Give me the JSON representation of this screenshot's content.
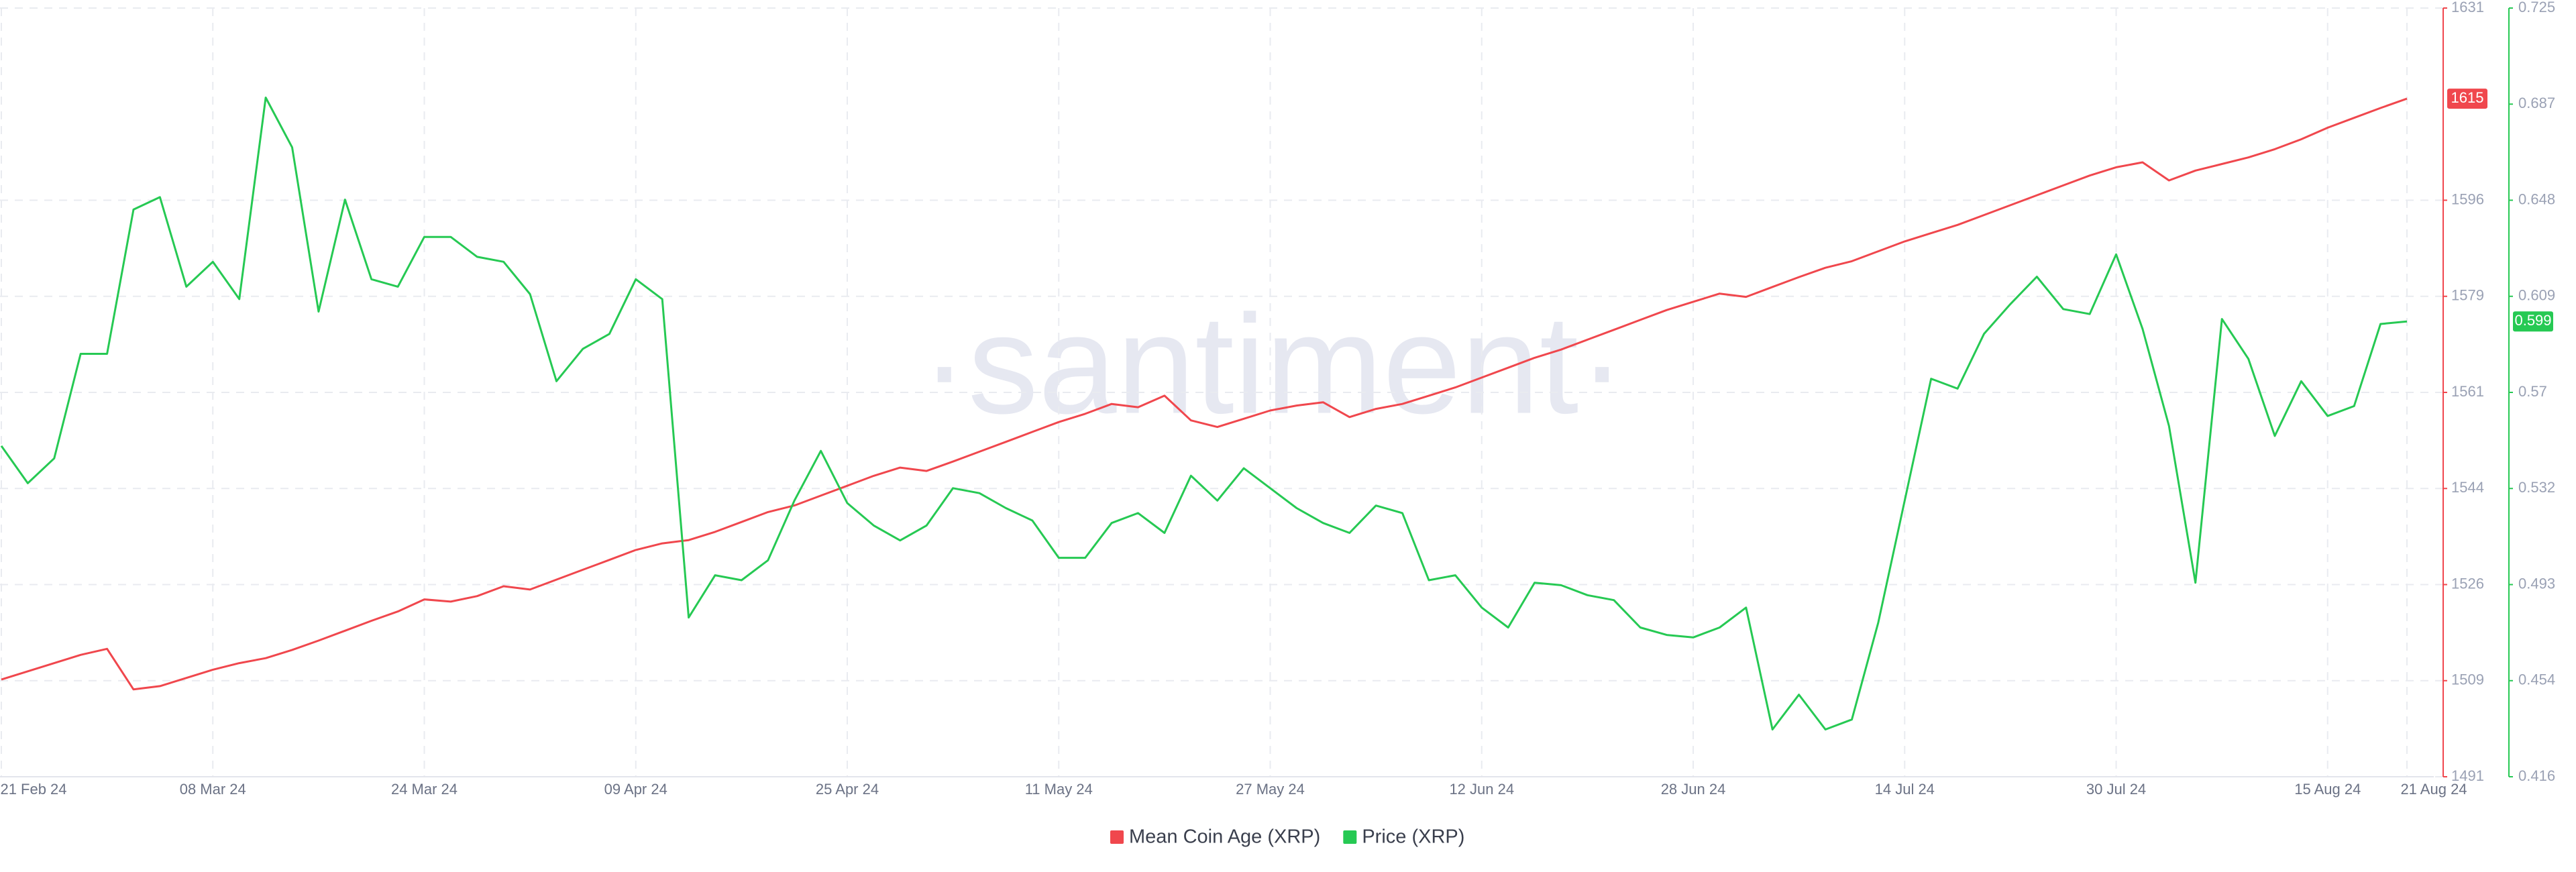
{
  "chart_data": {
    "type": "line",
    "watermark": "·santiment·",
    "x": [
      "21 Feb 24",
      "23 Feb 24",
      "25 Feb 24",
      "27 Feb 24",
      "29 Feb 24",
      "02 Mar 24",
      "04 Mar 24",
      "06 Mar 24",
      "08 Mar 24",
      "10 Mar 24",
      "12 Mar 24",
      "14 Mar 24",
      "16 Mar 24",
      "18 Mar 24",
      "20 Mar 24",
      "22 Mar 24",
      "24 Mar 24",
      "26 Mar 24",
      "28 Mar 24",
      "30 Mar 24",
      "01 Apr 24",
      "03 Apr 24",
      "05 Apr 24",
      "07 Apr 24",
      "09 Apr 24",
      "11 Apr 24",
      "13 Apr 24",
      "15 Apr 24",
      "17 Apr 24",
      "19 Apr 24",
      "21 Apr 24",
      "23 Apr 24",
      "25 Apr 24",
      "27 Apr 24",
      "29 Apr 24",
      "01 May 24",
      "03 May 24",
      "05 May 24",
      "07 May 24",
      "09 May 24",
      "11 May 24",
      "13 May 24",
      "15 May 24",
      "17 May 24",
      "19 May 24",
      "21 May 24",
      "23 May 24",
      "25 May 24",
      "27 May 24",
      "29 May 24",
      "31 May 24",
      "02 Jun 24",
      "04 Jun 24",
      "06 Jun 24",
      "08 Jun 24",
      "10 Jun 24",
      "12 Jun 24",
      "14 Jun 24",
      "16 Jun 24",
      "18 Jun 24",
      "20 Jun 24",
      "22 Jun 24",
      "24 Jun 24",
      "26 Jun 24",
      "28 Jun 24",
      "30 Jun 24",
      "02 Jul 24",
      "04 Jul 24",
      "06 Jul 24",
      "08 Jul 24",
      "10 Jul 24",
      "12 Jul 24",
      "14 Jul 24",
      "16 Jul 24",
      "18 Jul 24",
      "20 Jul 24",
      "22 Jul 24",
      "24 Jul 24",
      "26 Jul 24",
      "28 Jul 24",
      "30 Jul 24",
      "01 Aug 24",
      "03 Aug 24",
      "05 Aug 24",
      "07 Aug 24",
      "09 Aug 24",
      "11 Aug 24",
      "13 Aug 24",
      "15 Aug 24",
      "17 Aug 24",
      "19 Aug 24",
      "21 Aug 24"
    ],
    "xticks": [
      "21 Feb 24",
      "08 Mar 24",
      "24 Mar 24",
      "09 Apr 24",
      "25 Apr 24",
      "11 May 24",
      "27 May 24",
      "12 Jun 24",
      "28 Jun 24",
      "14 Jul 24",
      "30 Jul 24",
      "15 Aug 24",
      "21 Aug 24"
    ],
    "ylim": [
      1491,
      1631
    ],
    "yticks": [
      {
        "value": 1491,
        "label": "1491"
      },
      {
        "value": 1508.5,
        "label": "1509"
      },
      {
        "value": 1526,
        "label": "1526"
      },
      {
        "value": 1543.5,
        "label": "1544"
      },
      {
        "value": 1561,
        "label": "1561"
      },
      {
        "value": 1578.5,
        "label": "1579"
      },
      {
        "value": 1596,
        "label": "1596"
      },
      {
        "value": 1631,
        "label": "1631"
      }
    ],
    "y2lim": [
      0.416,
      0.725
    ],
    "y2ticks": [
      {
        "value": 0.416,
        "label": "0.416"
      },
      {
        "value": 0.454625,
        "label": "0.454"
      },
      {
        "value": 0.49325,
        "label": "0.493"
      },
      {
        "value": 0.531875,
        "label": "0.532"
      },
      {
        "value": 0.5705,
        "label": "0.57"
      },
      {
        "value": 0.609125,
        "label": "0.609"
      },
      {
        "value": 0.64775,
        "label": "0.648"
      },
      {
        "value": 0.686375,
        "label": "0.687"
      },
      {
        "value": 0.725,
        "label": "0.725"
      }
    ],
    "grid": true,
    "series": [
      {
        "name": "Mean Coin Age (XRP)",
        "color": "#f0474d",
        "axis": "y",
        "values": [
          1508.7,
          1510.2,
          1511.7,
          1513.2,
          1514.3,
          1506.9,
          1507.5,
          1509.0,
          1510.5,
          1511.7,
          1512.6,
          1514.1,
          1515.8,
          1517.6,
          1519.4,
          1521.1,
          1523.3,
          1522.9,
          1523.9,
          1525.7,
          1525.1,
          1526.9,
          1528.7,
          1530.5,
          1532.3,
          1533.5,
          1534.1,
          1535.6,
          1537.4,
          1539.2,
          1540.4,
          1542.2,
          1544.0,
          1545.8,
          1547.3,
          1546.7,
          1548.4,
          1550.2,
          1552.0,
          1553.8,
          1555.6,
          1557.1,
          1558.9,
          1558.3,
          1560.4,
          1555.9,
          1554.7,
          1556.2,
          1557.7,
          1558.6,
          1559.2,
          1556.5,
          1558.0,
          1558.9,
          1560.4,
          1561.9,
          1563.7,
          1565.5,
          1567.3,
          1568.8,
          1570.6,
          1572.4,
          1574.2,
          1576.0,
          1577.5,
          1579.0,
          1578.4,
          1580.2,
          1582.0,
          1583.7,
          1584.9,
          1586.7,
          1588.5,
          1590.0,
          1591.5,
          1593.3,
          1595.1,
          1596.9,
          1598.7,
          1600.5,
          1602.0,
          1602.9,
          1599.6,
          1601.4,
          1602.6,
          1603.8,
          1605.3,
          1607.1,
          1609.2,
          1611.0,
          1612.8,
          1614.5
        ],
        "value_labels": [
          null,
          null,
          null,
          null,
          null,
          null,
          null,
          null,
          null,
          null,
          null,
          null,
          null,
          null,
          null,
          null,
          null,
          null,
          null,
          null,
          null,
          null,
          null,
          null,
          null,
          null,
          null,
          null,
          null,
          null,
          null,
          null,
          null,
          null,
          null,
          null,
          null,
          null,
          null,
          null,
          null,
          null,
          null,
          null,
          null,
          null,
          null,
          null,
          null,
          null,
          null,
          null,
          null,
          null,
          null,
          null,
          null,
          null,
          null,
          null,
          null,
          null,
          null,
          null,
          null,
          null,
          null,
          null,
          null,
          null,
          null,
          null,
          null,
          null,
          null,
          null,
          null,
          null,
          null,
          null,
          null,
          null,
          null,
          null,
          null,
          null,
          null,
          null,
          null,
          null,
          null,
          "1615"
        ]
      },
      {
        "name": "Price (XRP)",
        "color": "#26c953",
        "axis": "y2",
        "values": [
          0.549,
          0.534,
          0.544,
          0.586,
          0.586,
          0.644,
          0.649,
          0.613,
          0.623,
          0.608,
          0.689,
          0.669,
          0.603,
          0.648,
          0.616,
          0.613,
          0.633,
          0.633,
          0.625,
          0.623,
          0.61,
          0.575,
          0.588,
          0.594,
          0.616,
          0.608,
          0.48,
          0.497,
          0.495,
          0.503,
          0.527,
          0.547,
          0.526,
          0.517,
          0.511,
          0.517,
          0.532,
          0.53,
          0.524,
          0.519,
          0.504,
          0.504,
          0.518,
          0.522,
          0.514,
          0.537,
          0.527,
          0.54,
          0.532,
          0.524,
          0.518,
          0.514,
          0.525,
          0.522,
          0.495,
          0.497,
          0.484,
          0.476,
          0.494,
          0.493,
          0.489,
          0.487,
          0.476,
          0.473,
          0.472,
          0.476,
          0.484,
          0.435,
          0.449,
          0.435,
          0.439,
          0.478,
          0.527,
          0.576,
          0.572,
          0.594,
          0.606,
          0.617,
          0.604,
          0.602,
          0.626,
          0.596,
          0.557,
          0.494,
          0.6,
          0.584,
          0.553,
          0.575,
          0.561,
          0.565,
          0.598,
          0.599
        ],
        "value_labels": [
          null,
          null,
          null,
          null,
          null,
          null,
          null,
          null,
          null,
          null,
          null,
          null,
          null,
          null,
          null,
          null,
          null,
          null,
          null,
          null,
          null,
          null,
          null,
          null,
          null,
          null,
          null,
          null,
          null,
          null,
          null,
          null,
          null,
          null,
          null,
          null,
          null,
          null,
          null,
          null,
          null,
          null,
          null,
          null,
          null,
          null,
          null,
          null,
          null,
          null,
          null,
          null,
          null,
          null,
          null,
          null,
          null,
          null,
          null,
          null,
          null,
          null,
          null,
          null,
          null,
          null,
          null,
          null,
          null,
          null,
          null,
          null,
          null,
          null,
          null,
          null,
          null,
          null,
          null,
          null,
          null,
          null,
          null,
          null,
          null,
          null,
          null,
          null,
          null,
          null,
          null,
          "0.599"
        ]
      }
    ]
  }
}
